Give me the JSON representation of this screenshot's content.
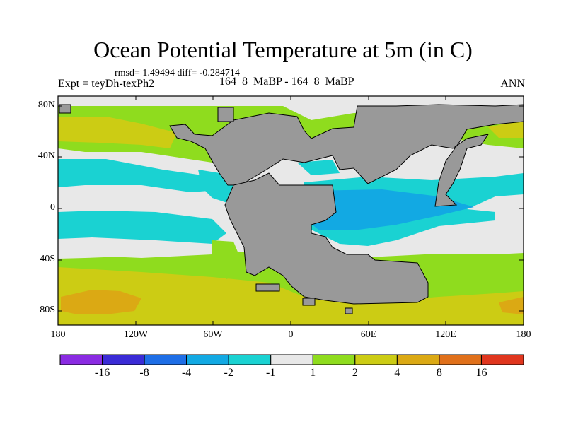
{
  "title": "Ocean Potential Temperature at 5m (in C)",
  "stats": "rmsd= 1.49494 diff= -0.284714",
  "experiment": "Expt = teyDh-texPh2",
  "period": "164_8_MaBP - 164_8_MaBP",
  "season": "ANN",
  "lat_labels": [
    "80N",
    "40N",
    "0",
    "40S",
    "80S"
  ],
  "lon_labels": [
    "180",
    "120W",
    "60W",
    "0",
    "60E",
    "120E",
    "180"
  ],
  "colorbar": {
    "labels": [
      "-16",
      "-8",
      "-4",
      "-2",
      "-1",
      "1",
      "2",
      "4",
      "8",
      "16"
    ],
    "colors": [
      "#8a2be2",
      "#3a2bd6",
      "#1e6ee6",
      "#12a9e3",
      "#1ad2d2",
      "#e8e8e8",
      "#8fdc1e",
      "#cccc14",
      "#dba914",
      "#e0701a",
      "#e0361e"
    ]
  },
  "map_colors": {
    "land": "#999999",
    "ocean_base": "#e8e8e8"
  }
}
